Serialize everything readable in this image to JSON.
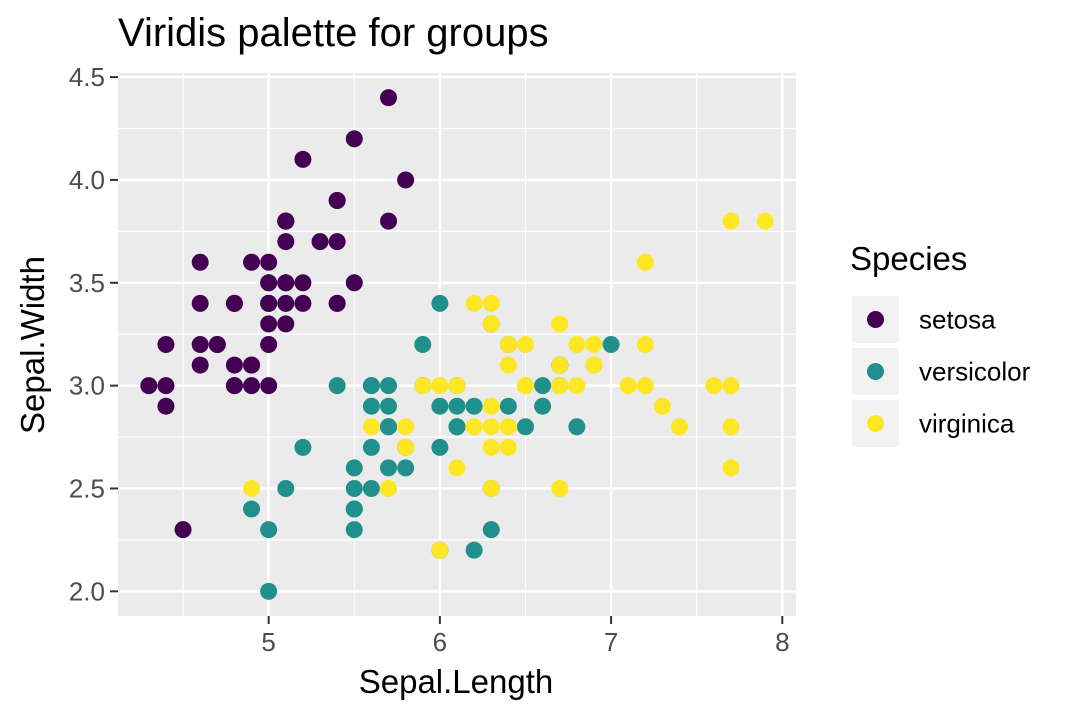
{
  "chart_data": {
    "type": "scatter",
    "title": "Viridis palette for groups",
    "xlabel": "Sepal.Length",
    "ylabel": "Sepal.Width",
    "xlim": [
      4.12,
      8.08
    ],
    "ylim": [
      1.88,
      4.52
    ],
    "xticks": [
      5,
      6,
      7,
      8
    ],
    "xtick_labels": [
      "5",
      "6",
      "7",
      "8"
    ],
    "yticks": [
      2.0,
      2.5,
      3.0,
      3.5,
      4.0,
      4.5
    ],
    "ytick_labels": [
      "2.0",
      "2.5",
      "3.0",
      "3.5",
      "4.0",
      "4.5"
    ],
    "grid": true,
    "legend": {
      "title": "Species",
      "position": "right"
    },
    "series": [
      {
        "name": "setosa",
        "color": "#440154",
        "x": [
          5.1,
          4.9,
          4.7,
          4.6,
          5.0,
          5.4,
          4.6,
          5.0,
          4.4,
          4.9,
          5.4,
          4.8,
          4.8,
          4.3,
          5.8,
          5.7,
          5.4,
          5.1,
          5.7,
          5.1,
          5.4,
          5.1,
          4.6,
          5.1,
          4.8,
          5.0,
          5.0,
          5.2,
          5.2,
          4.7,
          4.8,
          5.4,
          5.2,
          5.5,
          4.9,
          5.0,
          5.5,
          4.9,
          4.4,
          5.1,
          5.0,
          4.5,
          4.4,
          5.0,
          5.1,
          4.8,
          5.1,
          4.6,
          5.3,
          5.0
        ],
        "y": [
          3.5,
          3.0,
          3.2,
          3.1,
          3.6,
          3.9,
          3.4,
          3.4,
          2.9,
          3.1,
          3.7,
          3.4,
          3.0,
          3.0,
          4.0,
          4.4,
          3.9,
          3.5,
          3.8,
          3.8,
          3.4,
          3.7,
          3.6,
          3.3,
          3.4,
          3.0,
          3.4,
          3.5,
          3.4,
          3.2,
          3.1,
          3.4,
          4.1,
          4.2,
          3.1,
          3.2,
          3.5,
          3.6,
          3.0,
          3.4,
          3.5,
          2.3,
          3.2,
          3.5,
          3.8,
          3.0,
          3.8,
          3.2,
          3.7,
          3.3
        ]
      },
      {
        "name": "versicolor",
        "color": "#21908C",
        "x": [
          7.0,
          6.4,
          6.9,
          5.5,
          6.5,
          5.7,
          6.3,
          4.9,
          6.6,
          5.2,
          5.0,
          5.9,
          6.0,
          6.1,
          5.6,
          6.7,
          5.6,
          5.8,
          6.2,
          5.6,
          5.9,
          6.1,
          6.3,
          6.1,
          6.4,
          6.6,
          6.8,
          6.7,
          6.0,
          5.7,
          5.5,
          5.5,
          5.8,
          6.0,
          5.4,
          6.0,
          6.7,
          6.3,
          5.6,
          5.5,
          5.5,
          6.1,
          5.8,
          5.0,
          5.6,
          5.7,
          5.7,
          6.2,
          5.1,
          5.7
        ],
        "y": [
          3.2,
          3.2,
          3.1,
          2.3,
          2.8,
          2.8,
          3.3,
          2.4,
          2.9,
          2.7,
          2.0,
          3.0,
          2.2,
          2.9,
          2.9,
          3.1,
          3.0,
          2.7,
          2.2,
          2.5,
          3.2,
          2.8,
          2.5,
          2.8,
          2.9,
          3.0,
          2.8,
          3.0,
          2.9,
          2.6,
          2.4,
          2.4,
          2.7,
          2.7,
          3.0,
          3.4,
          3.1,
          2.3,
          3.0,
          2.5,
          2.6,
          3.0,
          2.6,
          2.3,
          2.7,
          3.0,
          2.9,
          2.9,
          2.5,
          2.8
        ]
      },
      {
        "name": "virginica",
        "color": "#FDE725",
        "x": [
          6.3,
          5.8,
          7.1,
          6.3,
          6.5,
          7.6,
          4.9,
          7.3,
          6.7,
          7.2,
          6.5,
          6.4,
          6.8,
          5.7,
          5.8,
          6.4,
          6.5,
          7.7,
          7.7,
          6.0,
          6.9,
          5.6,
          7.7,
          6.3,
          6.7,
          7.2,
          6.2,
          6.1,
          6.4,
          7.2,
          7.4,
          7.9,
          6.4,
          6.3,
          6.1,
          7.7,
          6.3,
          6.4,
          6.0,
          6.9,
          6.7,
          6.9,
          5.8,
          6.8,
          6.7,
          6.7,
          6.3,
          6.5,
          6.2,
          5.9
        ],
        "y": [
          3.3,
          2.7,
          3.0,
          2.9,
          3.0,
          3.0,
          2.5,
          2.9,
          2.5,
          3.6,
          3.2,
          2.7,
          3.0,
          2.5,
          2.8,
          3.2,
          3.0,
          3.8,
          2.6,
          2.2,
          3.2,
          2.8,
          2.8,
          2.7,
          3.3,
          3.2,
          2.8,
          3.0,
          2.8,
          3.0,
          2.8,
          3.8,
          2.8,
          2.8,
          2.6,
          3.0,
          3.4,
          3.1,
          3.0,
          3.1,
          3.1,
          3.1,
          2.7,
          3.2,
          3.3,
          3.0,
          2.5,
          3.0,
          3.4,
          3.0
        ]
      }
    ]
  },
  "colors": {
    "panel_background": "#EBEBEB",
    "grid_major": "#FFFFFF",
    "tick_mark": "#333333",
    "legend_key_background": "#F2F2F2"
  }
}
